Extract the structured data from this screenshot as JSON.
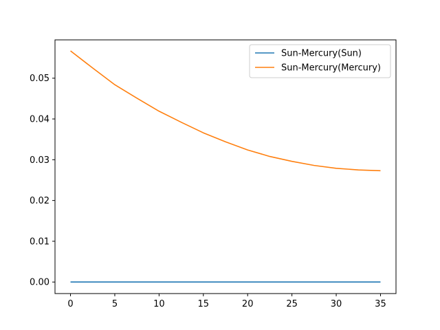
{
  "chart_data": {
    "type": "line",
    "title": "",
    "xlabel": "",
    "ylabel": "",
    "xlim": [
      -1.75,
      36.75
    ],
    "ylim": [
      -0.00283,
      0.0594
    ],
    "xticks": [
      0,
      5,
      10,
      15,
      20,
      25,
      30,
      35
    ],
    "xtick_labels": [
      "0",
      "5",
      "10",
      "15",
      "20",
      "25",
      "30",
      "35"
    ],
    "yticks": [
      0,
      0.01,
      0.02,
      0.03,
      0.04,
      0.05
    ],
    "ytick_labels": [
      "0.00",
      "0.01",
      "0.02",
      "0.03",
      "0.04",
      "0.05"
    ],
    "grid": false,
    "legend_position": "upper right",
    "x": [
      0,
      2.5,
      5,
      7.5,
      10,
      12.5,
      15,
      17.5,
      20,
      22.5,
      25,
      27.5,
      30,
      32.5,
      35
    ],
    "series": [
      {
        "name": "Sun-Mercury(Sun)",
        "color": "#1f77b4",
        "values": [
          0,
          0,
          0,
          0,
          0,
          0,
          0,
          0,
          0,
          0,
          0,
          0,
          0,
          0,
          0
        ]
      },
      {
        "name": "Sun-Mercury(Mercury)",
        "color": "#ff7f0e",
        "values": [
          0.0567,
          0.0525,
          0.0484,
          0.0451,
          0.0419,
          0.0392,
          0.0366,
          0.0344,
          0.0324,
          0.0308,
          0.0296,
          0.0286,
          0.0279,
          0.0275,
          0.0273
        ]
      }
    ]
  }
}
